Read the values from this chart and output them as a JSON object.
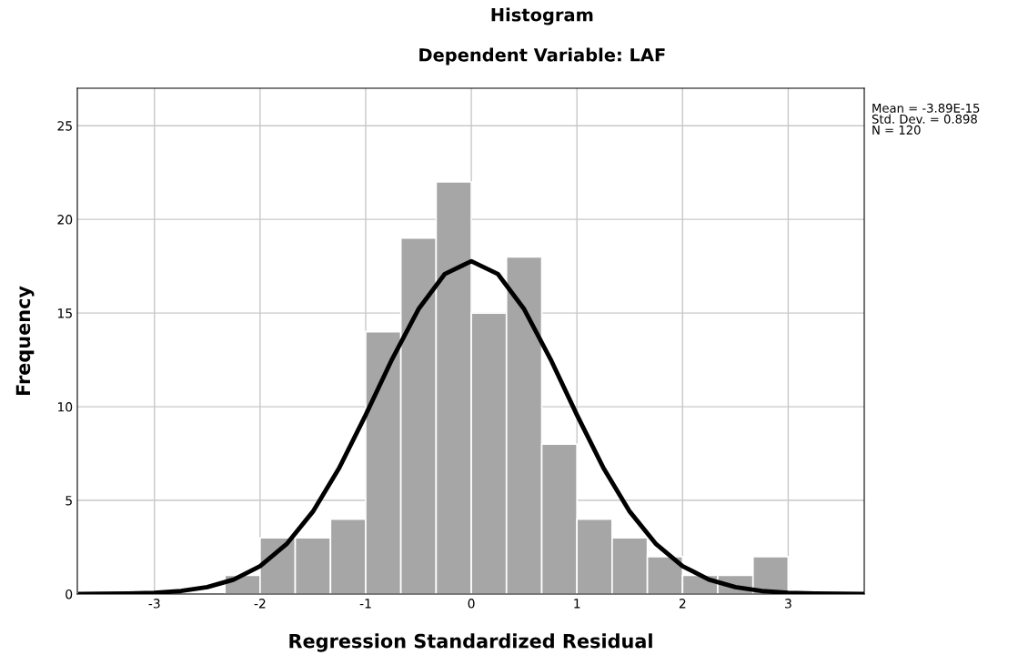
{
  "chart_data": {
    "type": "histogram",
    "title": "Histogram",
    "subtitle": "Dependent Variable: LAF",
    "xlabel": "Regression Standardized Residual",
    "ylabel": "Frequency",
    "bins": [
      -2.333,
      -2.0,
      -1.667,
      -1.333,
      -1.0,
      -0.667,
      -0.333,
      0.0,
      0.333,
      0.667,
      1.0,
      1.333,
      1.667,
      2.0,
      2.333,
      2.667,
      3.0
    ],
    "values": [
      1,
      3,
      3,
      4,
      14,
      19,
      22,
      15,
      18,
      8,
      4,
      3,
      2,
      1,
      1,
      2
    ],
    "color": "#a6a6a6",
    "series": [
      {
        "type": "line",
        "color": "#000000",
        "x": [
          -3.7,
          -3.5,
          -3.25,
          -3.0,
          -2.75,
          -2.5,
          -2.25,
          -2.0,
          -1.75,
          -1.5,
          -1.25,
          -1.0,
          -0.75,
          -0.5,
          -0.25,
          0,
          0.25,
          0.5,
          0.75,
          1.0,
          1.25,
          1.5,
          1.75,
          2.0,
          2.25,
          2.5,
          2.75,
          3.0,
          3.25,
          3.5,
          3.7
        ],
        "values": [
          0.0,
          0.01,
          0.03,
          0.07,
          0.16,
          0.37,
          0.77,
          1.49,
          2.66,
          4.4,
          6.74,
          9.56,
          12.54,
          15.21,
          17.09,
          17.77,
          17.09,
          15.21,
          12.54,
          9.56,
          6.74,
          4.4,
          2.66,
          1.49,
          0.77,
          0.37,
          0.16,
          0.07,
          0.03,
          0.01,
          0.0
        ]
      }
    ],
    "xlim": [
      -3.73,
      3.72
    ],
    "ylim": [
      0,
      27
    ],
    "xticks": [
      -3,
      -2,
      -1,
      0,
      1,
      2,
      3
    ],
    "yticks": [
      0,
      5,
      10,
      15,
      20,
      25
    ],
    "grid": true,
    "line_style": "solid",
    "marker": "none",
    "annotations": [
      "Mean = -3.89E-15",
      "Std. Dev. = 0.898",
      "N = 120"
    ]
  }
}
